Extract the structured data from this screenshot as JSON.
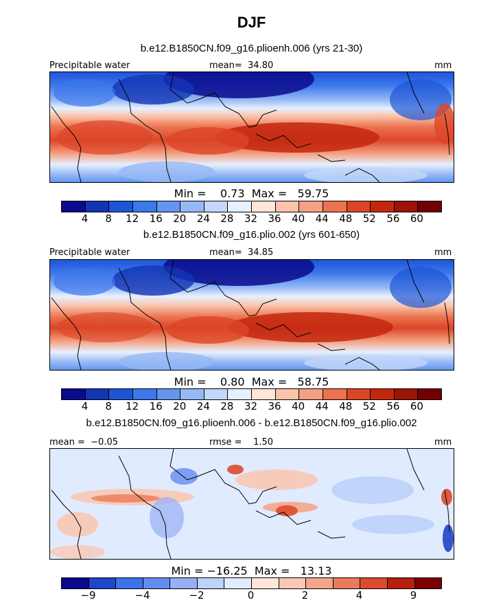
{
  "figure": {
    "title": "DJF",
    "domain_note": "global tropics-midlatitude band"
  },
  "panels": [
    {
      "id": "plioenh",
      "title": "b.e12.B1850CN.f09_g16.plioenh.006 (yrs 21-30)",
      "variable_label": "Precipitable water",
      "mean_text": "mean=  34.80",
      "units": "mm",
      "stats_text": "Min =    0.73  Max =   59.75",
      "colorbar": {
        "colors": [
          "#0a0a8c",
          "#1434b4",
          "#1e55d7",
          "#3c78eb",
          "#6496f0",
          "#96b9f5",
          "#c3d7fa",
          "#e6f0ff",
          "#ffe6d7",
          "#fac3aa",
          "#f5a082",
          "#eb7350",
          "#dc4628",
          "#c3280f",
          "#9b1405",
          "#730000"
        ],
        "tick_labels": [
          "4",
          "8",
          "12",
          "16",
          "20",
          "24",
          "28",
          "32",
          "36",
          "40",
          "44",
          "48",
          "52",
          "56",
          "60"
        ]
      }
    },
    {
      "id": "plio",
      "title": "b.e12.B1850CN.f09_g16.plio.002 (yrs 601-650)",
      "variable_label": "Precipitable water",
      "mean_text": "mean=  34.85",
      "units": "mm",
      "stats_text": "Min =    0.80  Max =   58.75",
      "colorbar": {
        "colors": [
          "#0a0a8c",
          "#1434b4",
          "#1e55d7",
          "#3c78eb",
          "#6496f0",
          "#96b9f5",
          "#c3d7fa",
          "#e6f0ff",
          "#ffe6d7",
          "#fac3aa",
          "#f5a082",
          "#eb7350",
          "#dc4628",
          "#c3280f",
          "#9b1405",
          "#730000"
        ],
        "tick_labels": [
          "4",
          "8",
          "12",
          "16",
          "20",
          "24",
          "28",
          "32",
          "36",
          "40",
          "44",
          "48",
          "52",
          "56",
          "60"
        ]
      }
    },
    {
      "id": "diff",
      "title": "b.e12.B1850CN.f09_g16.plioenh.006 - b.e12.B1850CN.f09_g16.plio.002",
      "mean_text": "mean =  −0.05",
      "rmse_text": "rmse =    1.50",
      "units": "mm",
      "stats_text": "Min = −16.25  Max =   13.13",
      "colorbar": {
        "colors": [
          "#0a0a8c",
          "#1e46c8",
          "#3c73eb",
          "#648cf0",
          "#96aff5",
          "#bed2fa",
          "#e1ebff",
          "#ffe6dc",
          "#fac8b4",
          "#f5a58c",
          "#eb7a5a",
          "#dc4b2d",
          "#b91e0f",
          "#7d0000"
        ],
        "tick_labels": [
          "−9",
          "−4",
          "−2",
          "0",
          "2",
          "4",
          "9"
        ]
      }
    }
  ]
}
